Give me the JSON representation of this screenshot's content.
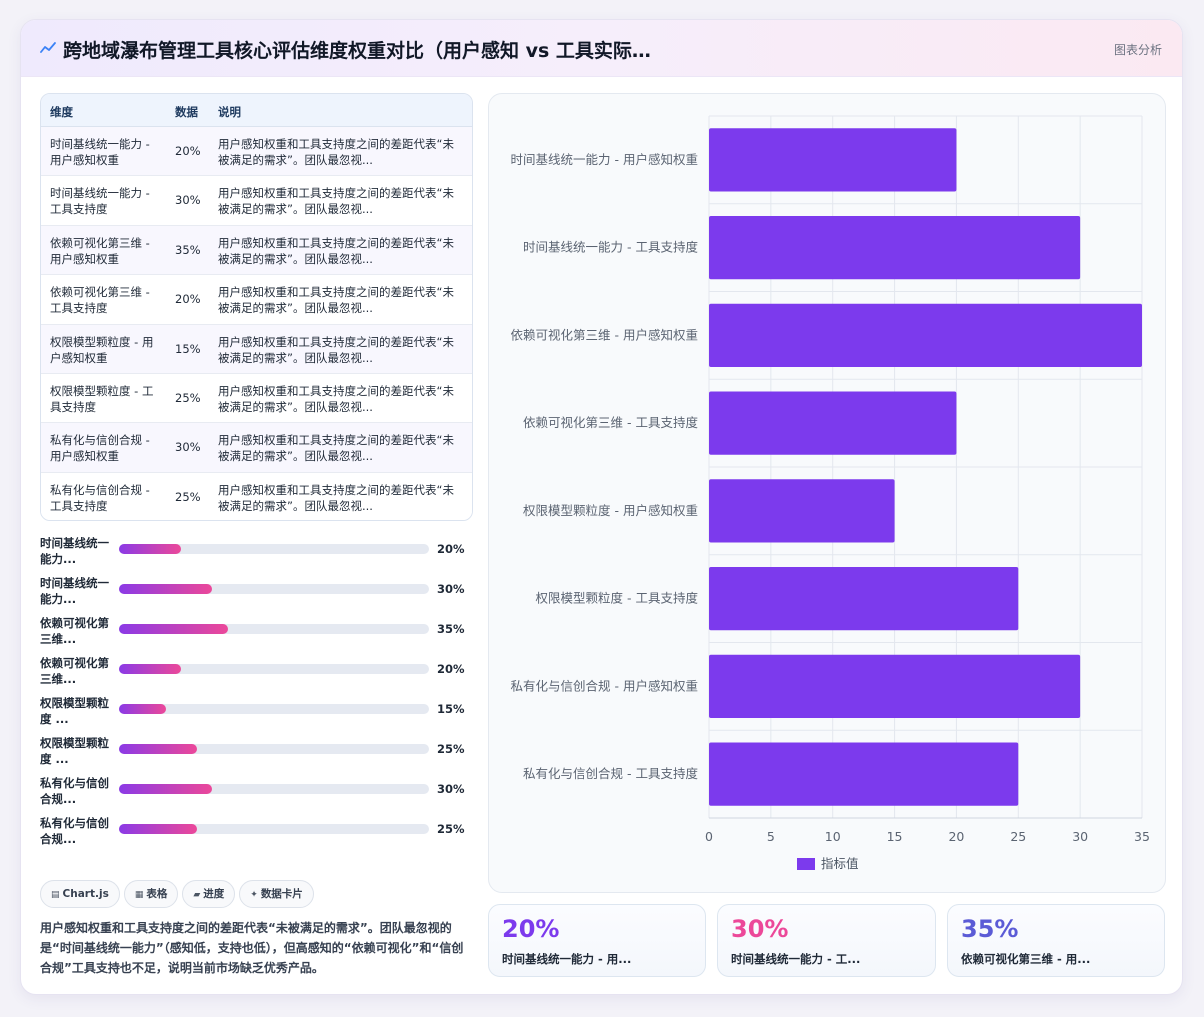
{
  "header": {
    "title": "跨地域瀑布管理工具核心评估维度权重对比（用户感知 vs 工具实际…",
    "right_label": "图表分析"
  },
  "table": {
    "headers": [
      "维度",
      "数据",
      "说明"
    ],
    "rows": [
      {
        "dim": "时间基线统一能力 - 用户感知权重",
        "val": "20%",
        "desc": "用户感知权重和工具支持度之间的差距代表“未被满足的需求”。团队最忽视..."
      },
      {
        "dim": "时间基线统一能力 - 工具支持度",
        "val": "30%",
        "desc": "用户感知权重和工具支持度之间的差距代表“未被满足的需求”。团队最忽视..."
      },
      {
        "dim": "依赖可视化第三维 - 用户感知权重",
        "val": "35%",
        "desc": "用户感知权重和工具支持度之间的差距代表“未被满足的需求”。团队最忽视..."
      },
      {
        "dim": "依赖可视化第三维 - 工具支持度",
        "val": "20%",
        "desc": "用户感知权重和工具支持度之间的差距代表“未被满足的需求”。团队最忽视..."
      },
      {
        "dim": "权限模型颗粒度 - 用户感知权重",
        "val": "15%",
        "desc": "用户感知权重和工具支持度之间的差距代表“未被满足的需求”。团队最忽视..."
      },
      {
        "dim": "权限模型颗粒度 - 工具支持度",
        "val": "25%",
        "desc": "用户感知权重和工具支持度之间的差距代表“未被满足的需求”。团队最忽视..."
      },
      {
        "dim": "私有化与信创合规 - 用户感知权重",
        "val": "30%",
        "desc": "用户感知权重和工具支持度之间的差距代表“未被满足的需求”。团队最忽视..."
      },
      {
        "dim": "私有化与信创合规 - 工具支持度",
        "val": "25%",
        "desc": "用户感知权重和工具支持度之间的差距代表“未被满足的需求”。团队最忽视..."
      }
    ]
  },
  "progress": [
    {
      "label": "时间基线统一能力...",
      "value": 20,
      "display": "20%"
    },
    {
      "label": "时间基线统一能力...",
      "value": 30,
      "display": "30%"
    },
    {
      "label": "依赖可视化第三维...",
      "value": 35,
      "display": "35%"
    },
    {
      "label": "依赖可视化第三维...",
      "value": 20,
      "display": "20%"
    },
    {
      "label": "权限模型颗粒度 ...",
      "value": 15,
      "display": "15%"
    },
    {
      "label": "权限模型颗粒度 ...",
      "value": 25,
      "display": "25%"
    },
    {
      "label": "私有化与信创合规...",
      "value": 30,
      "display": "30%"
    },
    {
      "label": "私有化与信创合规...",
      "value": 25,
      "display": "25%"
    }
  ],
  "chips": [
    {
      "icon": "chart-icon",
      "label": "Chart.js"
    },
    {
      "icon": "table-icon",
      "label": "表格"
    },
    {
      "icon": "folder-icon",
      "label": "进度"
    },
    {
      "icon": "sparkle-icon",
      "label": "数据卡片"
    }
  ],
  "summary": "用户感知权重和工具支持度之间的差距代表“未被满足的需求”。团队最忽视的是“时间基线统一能力”（感知低，支持也低），但高感知的“依赖可视化”和“信创合规”工具支持也不足，说明当前市场缺乏优秀产品。",
  "stats": [
    {
      "value": "20%",
      "label": "时间基线统一能力 - 用...",
      "color": "#7c3aed"
    },
    {
      "value": "30%",
      "label": "时间基线统一能力 - 工...",
      "color": "#ec4899"
    },
    {
      "value": "35%",
      "label": "依赖可视化第三维 - 用...",
      "color": "#5b5bd6"
    }
  ],
  "chart_data": {
    "type": "bar",
    "orientation": "horizontal",
    "categories": [
      "时间基线统一能力 - 用户感知权重",
      "时间基线统一能力 - 工具支持度",
      "依赖可视化第三维 - 用户感知权重",
      "依赖可视化第三维 - 工具支持度",
      "权限模型颗粒度 - 用户感知权重",
      "权限模型颗粒度 - 工具支持度",
      "私有化与信创合规 - 用户感知权重",
      "私有化与信创合规 - 工具支持度"
    ],
    "series": [
      {
        "name": "指标值",
        "values": [
          20,
          30,
          35,
          20,
          15,
          25,
          30,
          25
        ],
        "color": "#7c3aed"
      }
    ],
    "xlim": [
      0,
      35
    ],
    "xticks": [
      0,
      5,
      10,
      15,
      20,
      25,
      30,
      35
    ],
    "grid": true,
    "legend": "bottom"
  }
}
